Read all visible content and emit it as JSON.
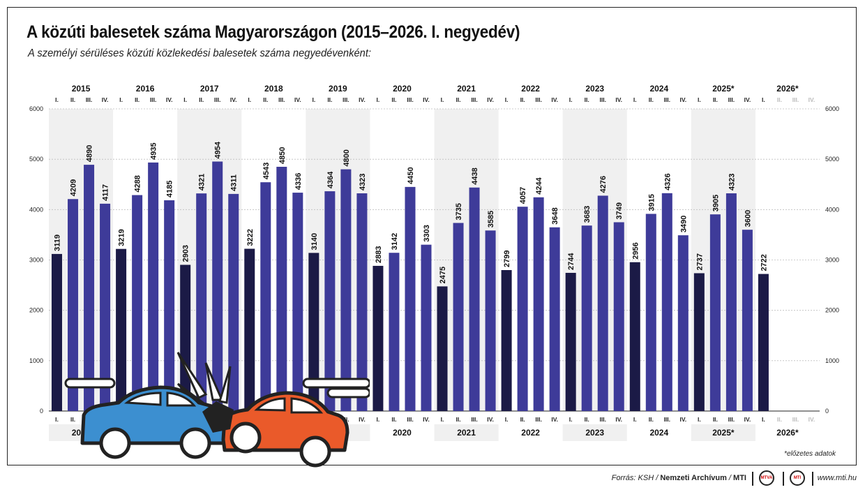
{
  "title": "A közúti balesetek száma Magyarországon (2015–2026. I. negyedév)",
  "subtitle": "A személyi sérüléses közúti közlekedési balesetek száma negyedévenként:",
  "note": "*előzetes adatok",
  "footer": {
    "source_prefix": "Forrás: KSH / ",
    "source_archive": "Nemzeti Archívum",
    "source_sep": " / ",
    "source_mti": "MTI",
    "logo1": "MTVA",
    "logo2": "MTI",
    "website": "www.mti.hu"
  },
  "colors": {
    "q1_bar": "#1b1a46",
    "other_bar": "#3e3b99",
    "band": "#f0f0f0",
    "future_label": "#bbbbbb",
    "car_left": "#3c8fd0",
    "car_right": "#ea5a2a"
  },
  "icons": [
    "crashing-cars-illustration"
  ],
  "chart_data": {
    "type": "bar",
    "title": "A közúti balesetek száma Magyarországon (2015–2026. I. negyedév)",
    "ylim": [
      0,
      6000
    ],
    "yticks": [
      0,
      1000,
      2000,
      3000,
      4000,
      5000,
      6000
    ],
    "grid": true,
    "quarter_labels": [
      "I.",
      "II.",
      "III.",
      "IV."
    ],
    "years": [
      {
        "label": "2015",
        "values": [
          3119,
          4209,
          4890,
          4117
        ]
      },
      {
        "label": "2016",
        "values": [
          3219,
          4288,
          4935,
          4185
        ]
      },
      {
        "label": "2017",
        "values": [
          2903,
          4321,
          4954,
          4311
        ]
      },
      {
        "label": "2018",
        "values": [
          3222,
          4543,
          4850,
          4336
        ]
      },
      {
        "label": "2019",
        "values": [
          3140,
          4364,
          4800,
          4323
        ]
      },
      {
        "label": "2020",
        "values": [
          2883,
          3142,
          4450,
          3303
        ]
      },
      {
        "label": "2021",
        "values": [
          2475,
          3735,
          4438,
          3585
        ]
      },
      {
        "label": "2022",
        "values": [
          2799,
          4057,
          4244,
          3648
        ]
      },
      {
        "label": "2023",
        "values": [
          2744,
          3683,
          4276,
          3749
        ]
      },
      {
        "label": "2024",
        "values": [
          2956,
          3915,
          4326,
          3490
        ]
      },
      {
        "label": "2025*",
        "values": [
          2737,
          3905,
          4323,
          3600
        ]
      },
      {
        "label": "2026*",
        "values": [
          2722,
          null,
          null,
          null
        ]
      }
    ]
  }
}
